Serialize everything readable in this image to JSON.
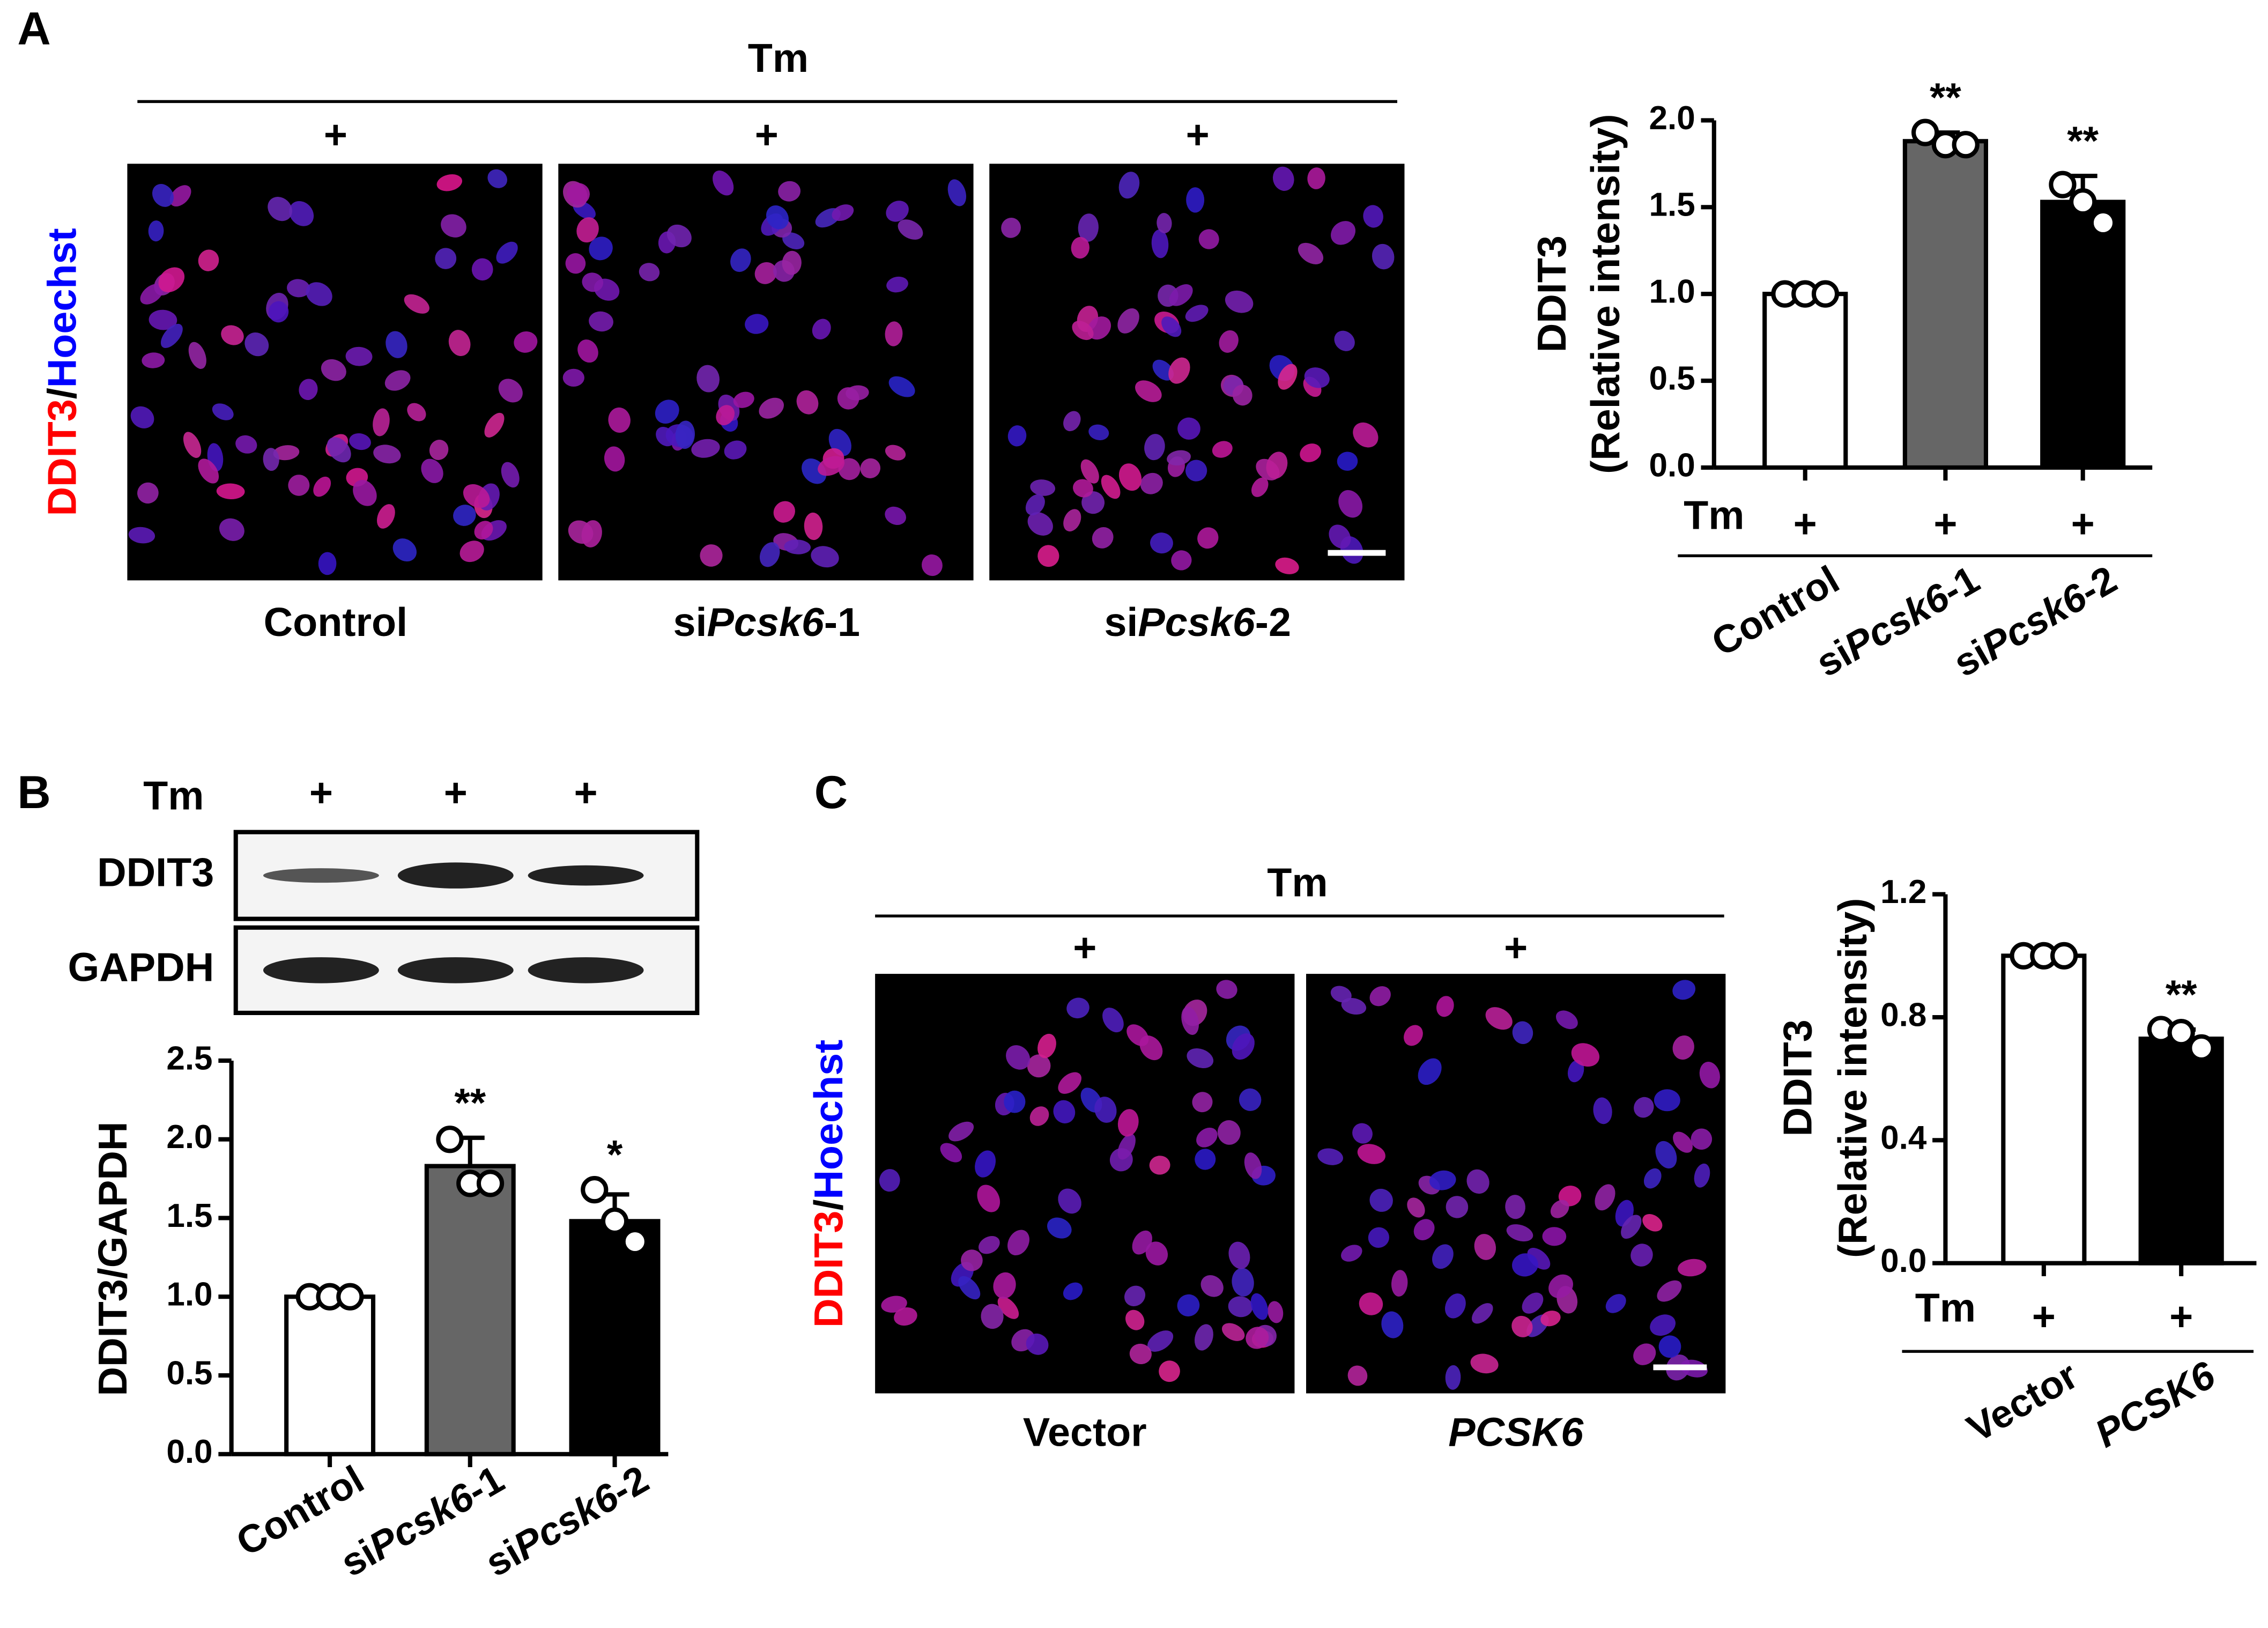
{
  "panel_a": {
    "label": "A",
    "treatment": "Tm",
    "treatment_marks": [
      "+",
      "+",
      "+"
    ],
    "stain": [
      "DDIT3",
      "/",
      "Hoechst"
    ],
    "images": [
      "Control",
      "siPcsk6-1",
      "siPcsk6-2"
    ]
  },
  "panel_b": {
    "label": "B",
    "treatment": "Tm",
    "treatment_marks": [
      "+",
      "+",
      "+"
    ],
    "blot_rows": [
      "DDIT3",
      "GAPDH"
    ]
  },
  "panel_c": {
    "label": "C",
    "treatment": "Tm",
    "treatment_marks": [
      "+",
      "+"
    ],
    "stain": [
      "DDIT3",
      "/",
      "Hoechst"
    ],
    "images": [
      "Vector",
      "PCSK6"
    ]
  },
  "chart_data": [
    {
      "type": "bar",
      "ylabel": [
        "DDIT3",
        "(Relative intensity)"
      ],
      "categories": [
        "Control",
        "siPcsk6-1",
        "siPcsk6-2"
      ],
      "values": [
        1.0,
        1.88,
        1.53
      ],
      "errors": [
        0.01,
        0.05,
        0.15
      ],
      "points": [
        [
          1.0,
          1.0,
          1.0
        ],
        [
          1.93,
          1.86,
          1.86
        ],
        [
          1.63,
          1.53,
          1.41
        ]
      ],
      "significance": [
        null,
        "**",
        "**"
      ],
      "colors": [
        "#ffffff",
        "#666666",
        "#000000"
      ],
      "ylim": [
        0,
        2.0
      ],
      "yticks": [
        {
          "value": 0,
          "label": "0.0"
        },
        0.5,
        {
          "value": 1,
          "label": "1.0"
        },
        1.5,
        {
          "value": 2,
          "label": "2.0"
        }
      ],
      "treatment": "Tm",
      "treatment_marks": [
        "+",
        "+",
        "+"
      ]
    },
    {
      "type": "bar",
      "ylabel": [
        "DDIT3/GAPDH"
      ],
      "categories": [
        "Control",
        "siPcsk6-1",
        "siPcsk6-2"
      ],
      "values": [
        1.0,
        1.83,
        1.48
      ],
      "errors": [
        0.01,
        0.18,
        0.17
      ],
      "points": [
        [
          1.0,
          1.0,
          1.0
        ],
        [
          2.0,
          1.72,
          1.72
        ],
        [
          1.68,
          1.48,
          1.35
        ]
      ],
      "significance": [
        null,
        "**",
        "*"
      ],
      "colors": [
        "#ffffff",
        "#666666",
        "#000000"
      ],
      "ylim": [
        0,
        2.5
      ],
      "yticks": [
        {
          "value": 0,
          "label": "0.0"
        },
        0.5,
        {
          "value": 1,
          "label": "1.0"
        },
        1.5,
        {
          "value": 2,
          "label": "2.0"
        },
        2.5
      ]
    },
    {
      "type": "bar",
      "ylabel": [
        "DDIT3",
        "(Relative intensity)"
      ],
      "categories": [
        "Vector",
        "PCSK6"
      ],
      "values": [
        1.0,
        0.73
      ],
      "errors": [
        0.005,
        0.03
      ],
      "points": [
        [
          1.0,
          1.0,
          1.0
        ],
        [
          0.76,
          0.75,
          0.7
        ]
      ],
      "significance": [
        null,
        "**"
      ],
      "colors": [
        "#ffffff",
        "#000000"
      ],
      "ylim": [
        0,
        1.2
      ],
      "yticks": [
        {
          "value": 0,
          "label": "0.0"
        },
        0.4,
        0.8,
        1.2
      ],
      "treatment": "Tm",
      "treatment_marks": [
        "+",
        "+"
      ]
    }
  ]
}
